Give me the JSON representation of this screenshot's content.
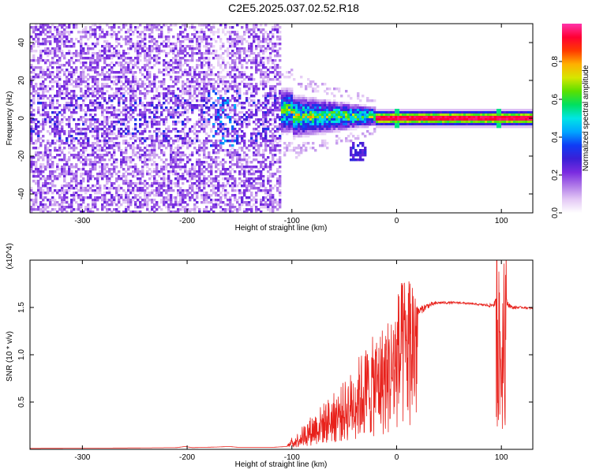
{
  "title": "C2E5.2025.037.02.52.R18",
  "chart_data": [
    {
      "type": "heatmap",
      "xlabel": "Height of straight line (km)",
      "ylabel": "Frequency (Hz)",
      "xlim": [
        -350,
        130
      ],
      "ylim": [
        -50,
        50
      ],
      "xticks": [
        -300,
        -200,
        -100,
        0,
        100
      ],
      "yticks": [
        -40,
        -20,
        0,
        20,
        40
      ],
      "colorbar": {
        "label": "Normalized spectral amplitude",
        "range": [
          0,
          1
        ],
        "ticks": [
          0.0,
          0.2,
          0.4,
          0.6,
          0.8
        ],
        "colors": [
          "#ffffff",
          "#e3c8f5",
          "#b07ae8",
          "#7a2be0",
          "#3a1fd6",
          "#0f3cf5",
          "#00a6ff",
          "#00e5e5",
          "#00e060",
          "#5ae000",
          "#d6e600",
          "#ffb000",
          "#ff3a00",
          "#ff0033",
          "#ff33aa"
        ]
      },
      "regions": [
        {
          "x_range": [
            -350,
            -110
          ],
          "freq_spread": 50,
          "amplitude": 0.25,
          "description_visible": false
        },
        {
          "x_range": [
            -110,
            -20
          ],
          "freq_spread": 10,
          "amplitude": 0.6
        },
        {
          "x_range": [
            -20,
            130
          ],
          "freq_center": 0,
          "freq_width": 1.5,
          "amplitude": 0.95
        }
      ]
    },
    {
      "type": "line",
      "xlabel": "Height of straight line (km)",
      "ylabel": "SNR (10 * v/v)",
      "y_multiplier": "(x10^4)",
      "xlim": [
        -350,
        130
      ],
      "ylim": [
        0,
        2.0
      ],
      "xticks": [
        -300,
        -200,
        -100,
        0,
        100
      ],
      "yticks": [
        0.5,
        1.0,
        1.5
      ],
      "color": "#e8211b",
      "series": [
        {
          "x": [
            -350,
            -300,
            -250,
            -210,
            -202,
            -195,
            -170,
            -160,
            -150,
            -120,
            -105,
            -95,
            -85,
            -75,
            -65,
            -55,
            -45,
            -35,
            -25,
            -15,
            -5,
            0,
            10,
            20,
            30,
            40,
            60,
            80,
            90,
            95,
            98,
            100,
            102,
            105,
            110,
            120,
            130
          ],
          "y": [
            0.01,
            0.012,
            0.015,
            0.018,
            0.03,
            0.018,
            0.025,
            0.03,
            0.02,
            0.02,
            0.03,
            0.12,
            0.22,
            0.3,
            0.38,
            0.45,
            0.55,
            0.7,
            0.8,
            0.9,
            1.0,
            1.15,
            1.32,
            1.45,
            1.52,
            1.55,
            1.55,
            1.53,
            1.52,
            1.55,
            1.62,
            0.95,
            1.75,
            1.55,
            1.5,
            1.5,
            1.49
          ],
          "noise_amplitude": [
            0,
            0,
            0,
            0,
            0,
            0,
            0,
            0,
            0,
            0,
            0,
            0.1,
            0.18,
            0.25,
            0.28,
            0.3,
            0.32,
            0.35,
            0.35,
            0.35,
            0.3,
            0.2,
            0.08,
            0.05,
            0.03,
            0.015,
            0.01,
            0.01,
            0.02,
            0.05,
            0.1,
            0.15,
            0.12,
            0.04,
            0.02,
            0.01,
            0.01
          ]
        }
      ]
    }
  ]
}
